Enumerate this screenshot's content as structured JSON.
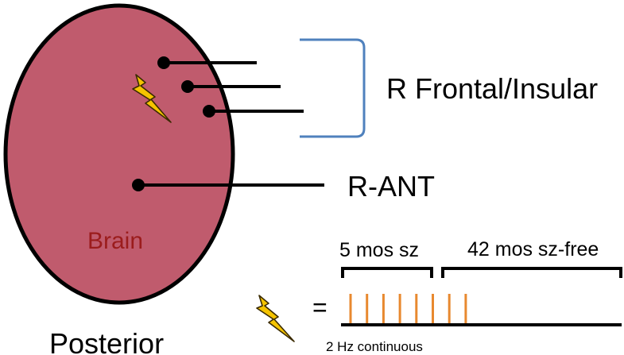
{
  "colors": {
    "brain_fill": "#c05b6d",
    "brain_outline": "#000000",
    "brain_label": "#9b1c1c",
    "bracket": "#4f81bd",
    "bolt_fill": "#f5c400",
    "bolt_outline": "#3a2a00",
    "pulse": "#e8892f",
    "text": "#000000"
  },
  "brain": {
    "label": "Brain"
  },
  "orientation": {
    "label": "Posterior"
  },
  "electrodes": {
    "frontal_insular_label": "R Frontal/Insular",
    "thalamic_label": "R-ANT"
  },
  "stimulation_legend": {
    "equals": "=",
    "phase_1_label": "5 mos sz",
    "phase_2_label": "42 mos sz-free",
    "pulse_count": 8,
    "frequency_label": "2 Hz continuous"
  }
}
